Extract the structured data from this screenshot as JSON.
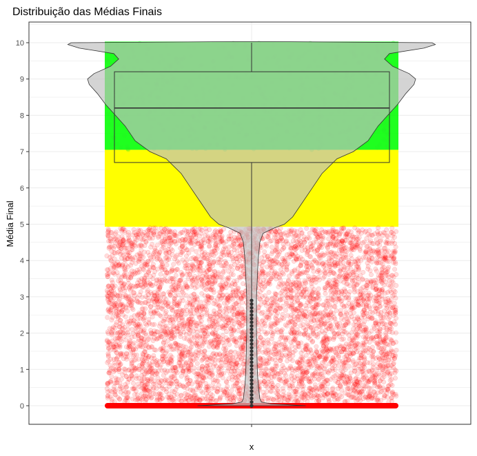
{
  "chart_data": {
    "type": "violin-box-jitter",
    "title": "Distribuição das Médias Finais",
    "xlabel": "x",
    "ylabel": "Média Final",
    "ylim": [
      -0.5,
      10.6
    ],
    "yticks": [
      0,
      1,
      2,
      3,
      4,
      5,
      6,
      7,
      8,
      9,
      10
    ],
    "categories": [
      "x"
    ],
    "grid": true,
    "colors": {
      "reprovado": "#ff0000",
      "recuperacao": "#ffff00",
      "aprovado": "#00ff00",
      "violin_fill": "#bfbfbf",
      "outline": "#333333",
      "panel_border": "#333333",
      "grid": "#ebebeb"
    },
    "bands": [
      {
        "from": 0,
        "to": 4.9,
        "color": "#ff0000"
      },
      {
        "from": 5.0,
        "to": 7.0,
        "color": "#ffff00"
      },
      {
        "from": 7.0,
        "to": 10.0,
        "color": "#00ff00"
      }
    ],
    "boxplot": {
      "min": 0,
      "q1": 6.7,
      "median": 8.2,
      "q3": 9.2,
      "max": 10
    },
    "violin_density": [
      [
        0.0,
        0.33
      ],
      [
        0.05,
        0.12
      ],
      [
        0.1,
        0.06
      ],
      [
        0.2,
        0.05
      ],
      [
        0.6,
        0.04
      ],
      [
        1.0,
        0.035
      ],
      [
        2.0,
        0.03
      ],
      [
        3.0,
        0.03
      ],
      [
        3.5,
        0.035
      ],
      [
        4.0,
        0.04
      ],
      [
        4.5,
        0.05
      ],
      [
        4.75,
        0.07
      ],
      [
        4.9,
        0.14
      ],
      [
        5.0,
        0.2
      ],
      [
        5.2,
        0.25
      ],
      [
        5.6,
        0.31
      ],
      [
        6.0,
        0.37
      ],
      [
        6.4,
        0.43
      ],
      [
        6.8,
        0.52
      ],
      [
        7.0,
        0.62
      ],
      [
        7.3,
        0.71
      ],
      [
        7.7,
        0.77
      ],
      [
        8.0,
        0.83
      ],
      [
        8.3,
        0.89
      ],
      [
        8.6,
        0.94
      ],
      [
        8.85,
        0.99
      ],
      [
        9.0,
        1.0
      ],
      [
        9.15,
        0.96
      ],
      [
        9.35,
        0.86
      ],
      [
        9.55,
        0.81
      ],
      [
        9.7,
        0.84
      ],
      [
        9.85,
        1.05
      ],
      [
        9.95,
        1.12
      ],
      [
        10.0,
        1.1
      ],
      [
        10.03,
        0.1
      ]
    ],
    "outliers": [
      0,
      0.1,
      0.2,
      0.3,
      0.4,
      0.5,
      0.6,
      0.7,
      0.8,
      0.9,
      1.0,
      1.1,
      1.2,
      1.3,
      1.4,
      1.5,
      1.6,
      1.7,
      1.8,
      1.9,
      2.0,
      2.1,
      2.2,
      2.3,
      2.4,
      2.5,
      2.6,
      2.7,
      2.8,
      2.9
    ]
  }
}
